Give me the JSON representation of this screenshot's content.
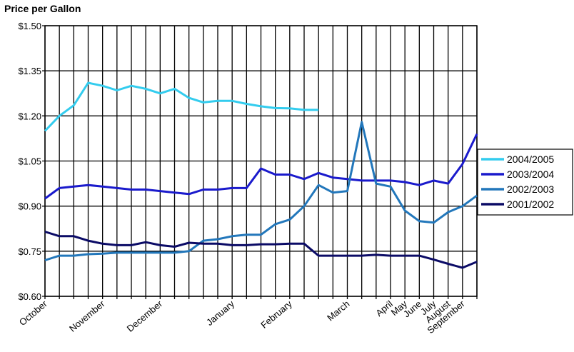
{
  "chart_data": {
    "type": "line",
    "title": "Price per Gallon",
    "xlabel": "",
    "ylabel": "",
    "ylim": [
      0.6,
      1.5
    ],
    "yticks": [
      "$0.60",
      "$0.75",
      "$0.90",
      "$1.05",
      "$1.20",
      "$1.35",
      "$1.50"
    ],
    "ytick_values": [
      0.6,
      0.75,
      0.9,
      1.05,
      1.2,
      1.35,
      1.5
    ],
    "grid": "on",
    "legend": "right",
    "tick_labels": [
      {
        "label": "October",
        "index": 0
      },
      {
        "label": "November",
        "index": 4
      },
      {
        "label": "December",
        "index": 8
      },
      {
        "label": "January",
        "index": 13
      },
      {
        "label": "February",
        "index": 17
      },
      {
        "label": "March",
        "index": 21
      },
      {
        "label": "April",
        "index": 24
      },
      {
        "label": "May",
        "index": 25
      },
      {
        "label": "June",
        "index": 26
      },
      {
        "label": "July",
        "index": 27
      },
      {
        "label": "August",
        "index": 28
      },
      {
        "label": "September",
        "index": 29
      }
    ],
    "series": [
      {
        "name": "2004/2005",
        "color": "#33CCEE",
        "values": [
          1.15,
          1.2,
          1.235,
          1.31,
          1.3,
          1.285,
          1.3,
          1.29,
          1.275,
          1.29,
          1.26,
          1.245,
          1.25,
          1.25,
          1.24,
          1.232,
          1.226,
          1.225,
          1.22,
          1.22,
          null,
          null,
          null,
          null,
          null,
          null,
          null,
          null,
          null,
          null,
          null
        ]
      },
      {
        "name": "2003/2004",
        "color": "#1A1ACC",
        "values": [
          0.925,
          0.96,
          0.965,
          0.97,
          0.965,
          0.96,
          0.955,
          0.955,
          0.95,
          0.945,
          0.94,
          0.955,
          0.955,
          0.96,
          0.96,
          1.025,
          1.005,
          1.005,
          0.99,
          1.01,
          0.995,
          0.99,
          0.985,
          0.985,
          0.985,
          0.98,
          0.97,
          0.985,
          0.975,
          1.04,
          1.14
        ]
      },
      {
        "name": "2002/2003",
        "color": "#2277BB",
        "values": [
          0.72,
          0.735,
          0.735,
          0.74,
          0.742,
          0.745,
          0.745,
          0.745,
          0.745,
          0.745,
          0.75,
          0.785,
          0.79,
          0.8,
          0.805,
          0.805,
          0.84,
          0.855,
          0.9,
          0.97,
          0.945,
          0.95,
          1.18,
          0.975,
          0.965,
          0.885,
          0.85,
          0.845,
          0.88,
          0.9,
          0.935
        ]
      },
      {
        "name": "2001/2002",
        "color": "#0B0B66",
        "values": [
          0.815,
          0.8,
          0.8,
          0.785,
          0.775,
          0.77,
          0.77,
          0.78,
          0.77,
          0.765,
          0.778,
          0.775,
          0.775,
          0.77,
          0.77,
          0.773,
          0.773,
          0.775,
          0.775,
          0.735,
          0.735,
          0.735,
          0.735,
          0.738,
          0.735,
          0.735,
          0.735,
          0.722,
          0.708,
          0.695,
          0.715
        ]
      }
    ]
  }
}
